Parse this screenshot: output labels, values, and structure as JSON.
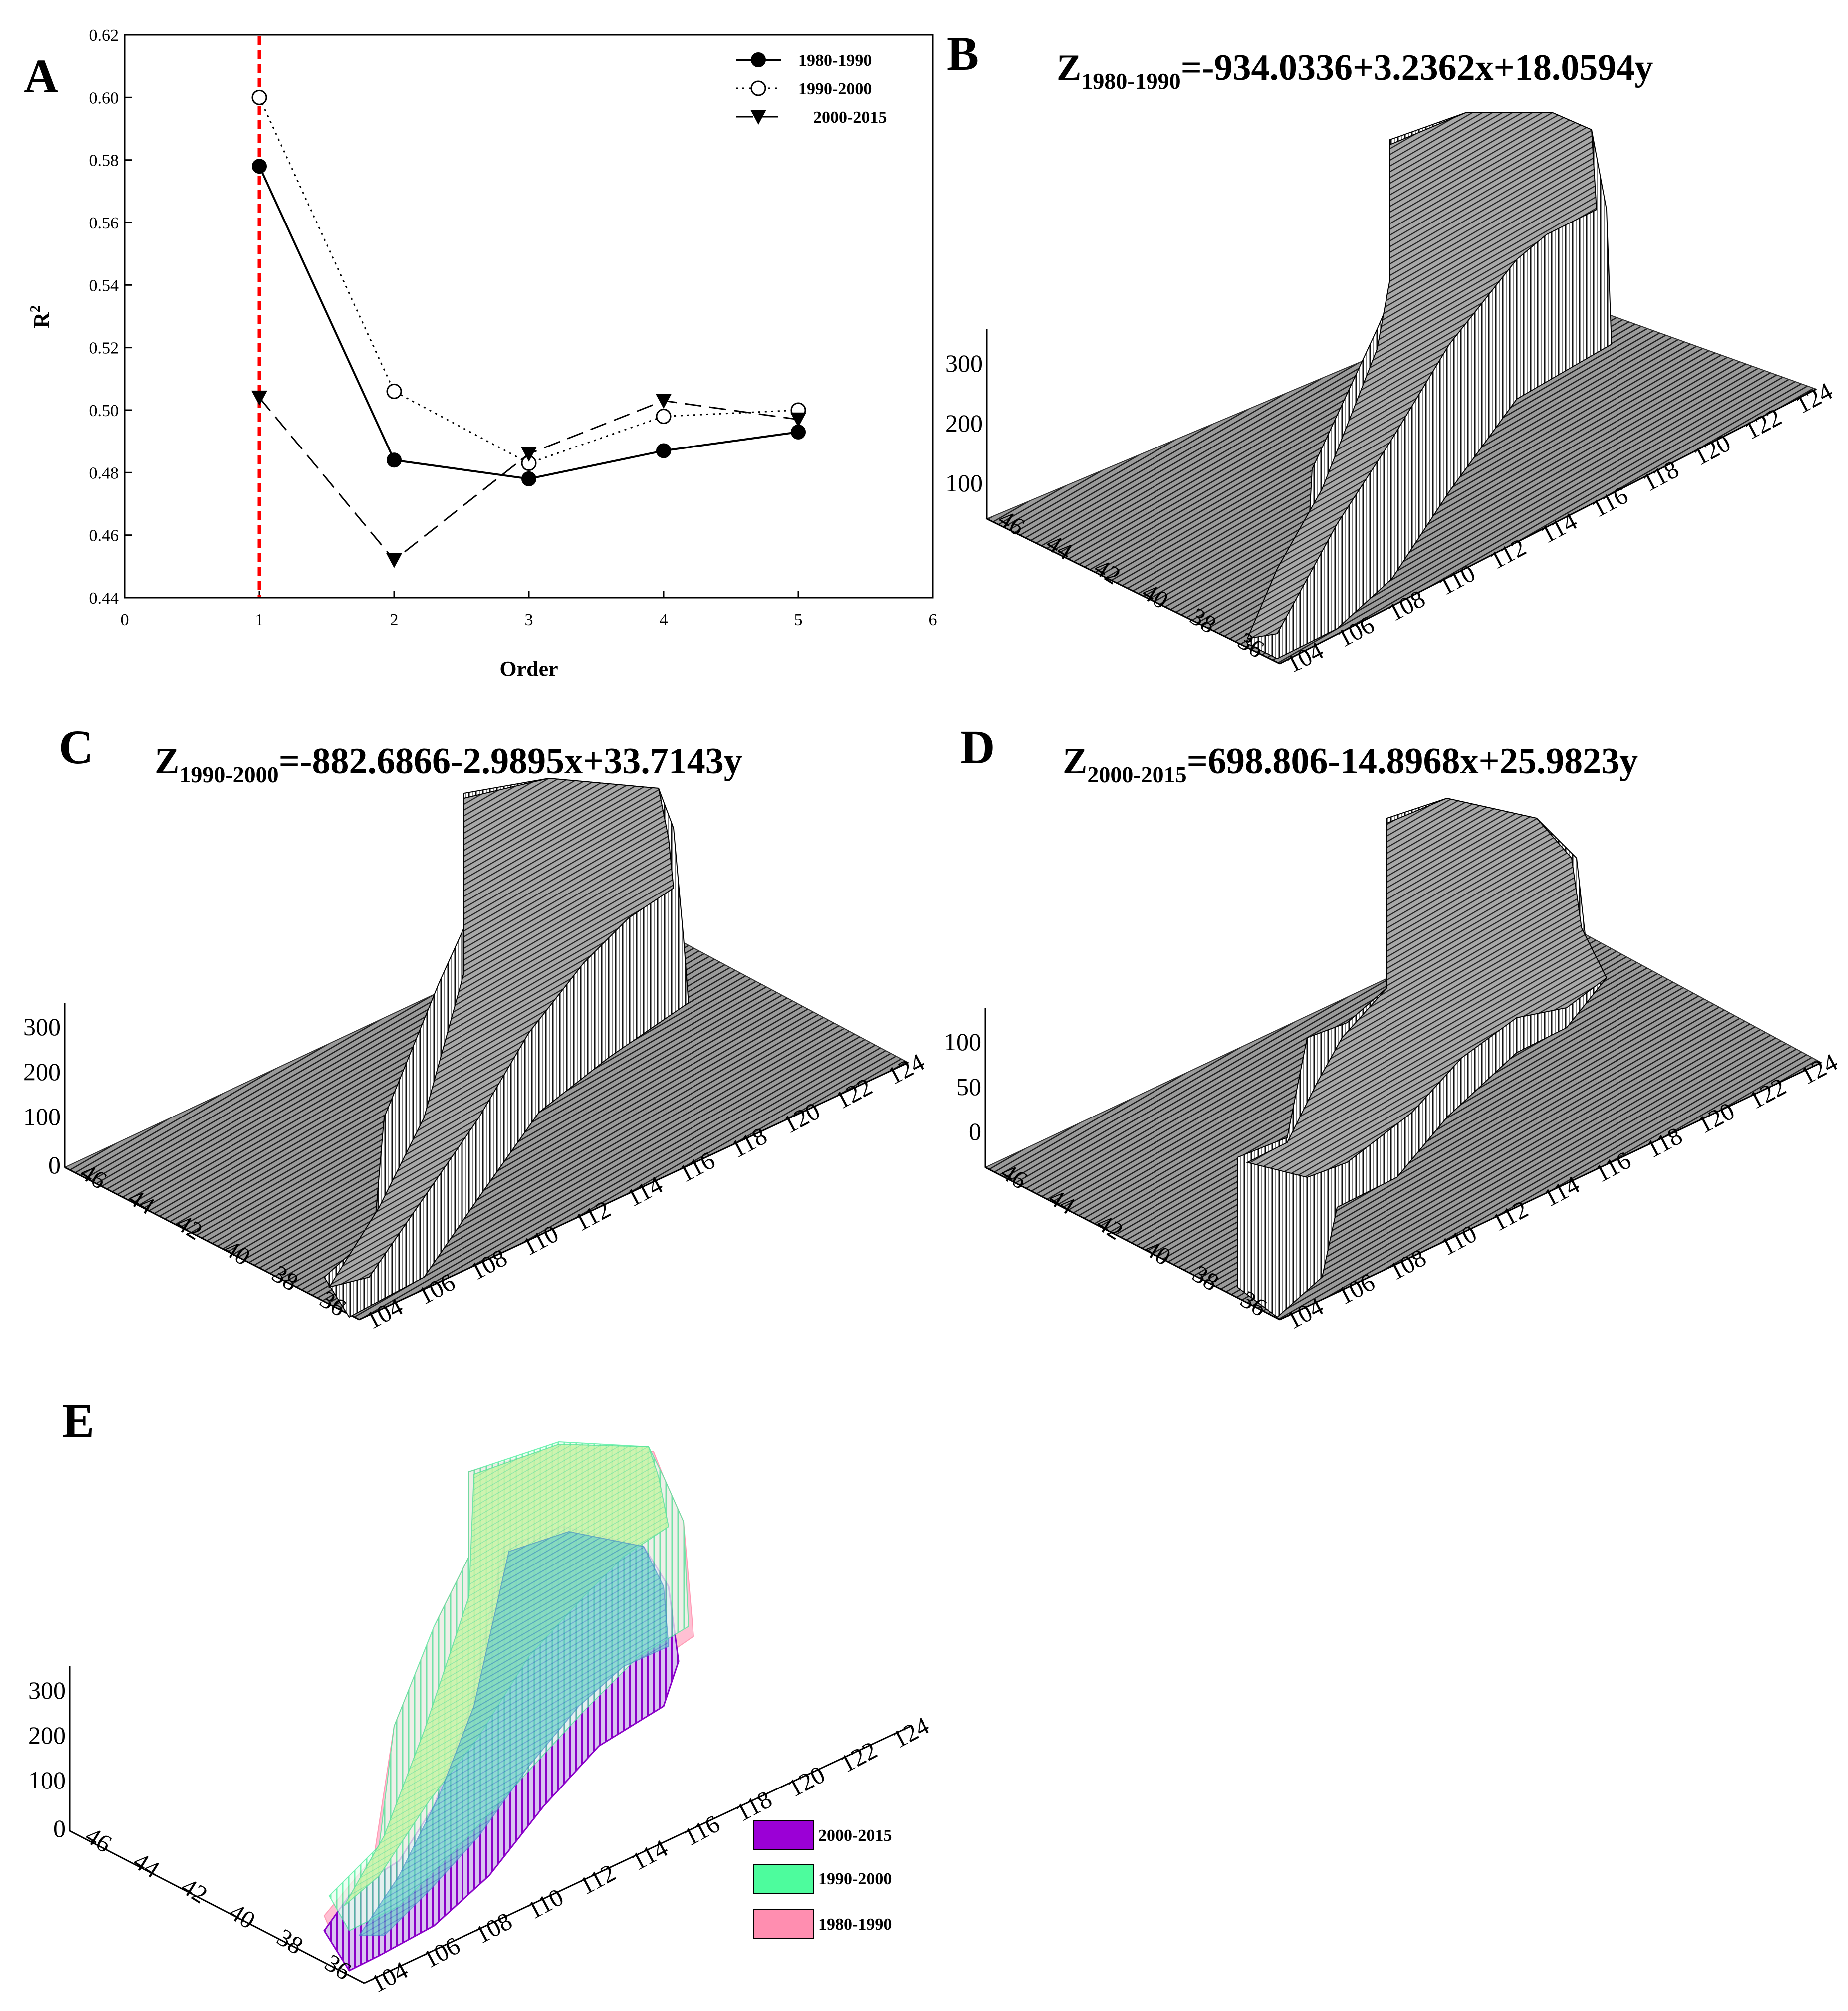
{
  "panels": {
    "A": {
      "label": "A"
    },
    "B": {
      "label": "B",
      "eq_z": "Z",
      "eq_sub": "1980-1990",
      "eq_rest": "=-934.0336+3.2362x+18.0594y",
      "z_ticks": [
        "100",
        "200",
        "300"
      ]
    },
    "C": {
      "label": "C",
      "eq_z": "Z",
      "eq_sub": "1990-2000",
      "eq_rest": "=-882.6866-2.9895x+33.7143y",
      "z_ticks": [
        "0",
        "100",
        "200",
        "300"
      ]
    },
    "D": {
      "label": "D",
      "eq_z": "Z",
      "eq_sub": "2000-2015",
      "eq_rest": "=698.806-14.8968x+25.9823y",
      "z_ticks": [
        "0",
        "50",
        "100"
      ]
    },
    "E": {
      "label": "E",
      "z_ticks": [
        "0",
        "100",
        "200",
        "300"
      ],
      "legend": [
        {
          "name": "2000-2015",
          "color": "#9b00d6"
        },
        {
          "name": "1990-2000",
          "color": "#4dfc9d"
        },
        {
          "name": "1980-1990",
          "color": "#ff8eb0"
        }
      ]
    }
  },
  "axis3d": {
    "lon_ticks": [
      "104",
      "106",
      "108",
      "110",
      "112",
      "114",
      "116",
      "118",
      "120",
      "122",
      "124"
    ],
    "lat_ticks": [
      "36",
      "38",
      "40",
      "42",
      "44",
      "46"
    ]
  },
  "chart_data": {
    "type": "line",
    "title": "",
    "xlabel": "Order",
    "ylabel": "R",
    "ylabel_sup": "2",
    "xlim": [
      0,
      6
    ],
    "ylim": [
      0.44,
      0.62
    ],
    "x_ticks": [
      "0",
      "1",
      "2",
      "3",
      "4",
      "5",
      "6"
    ],
    "y_ticks": [
      "0.44",
      "0.46",
      "0.48",
      "0.50",
      "0.52",
      "0.54",
      "0.56",
      "0.58",
      "0.60",
      "0.62"
    ],
    "x": [
      1,
      2,
      3,
      4,
      5
    ],
    "reference_line_x": 1,
    "reference_line_color": "#ff0000",
    "series": [
      {
        "name": "1980-1990",
        "values": [
          0.578,
          0.484,
          0.478,
          0.487,
          0.493
        ],
        "marker": "filled-circle",
        "line": "solid"
      },
      {
        "name": "1990-2000",
        "values": [
          0.6,
          0.506,
          0.483,
          0.498,
          0.5
        ],
        "marker": "open-circle",
        "line": "dotted"
      },
      {
        "name": "2000-2015",
        "values": [
          0.504,
          0.452,
          0.486,
          0.503,
          0.497
        ],
        "marker": "triangle-down",
        "line": "dashed"
      }
    ]
  }
}
